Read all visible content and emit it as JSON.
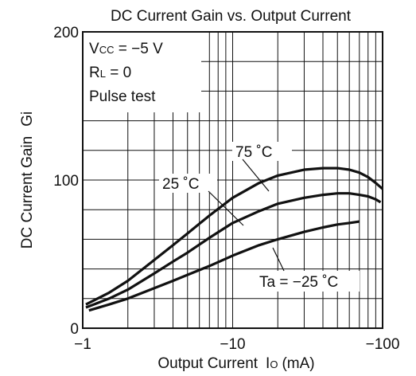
{
  "chart_data": {
    "type": "line",
    "title": "DC Current Gain vs. Output Current",
    "xlabel": "Output Current",
    "xlabel_symbol": "I",
    "xlabel_symbol_sub": "O",
    "xlabel_unit": "(mA)",
    "ylabel": "DC Current Gain",
    "ylabel_symbol": "Gi",
    "x_scale": "log",
    "xlim": [
      1,
      100
    ],
    "ylim": [
      0,
      200
    ],
    "x_ticks": [
      {
        "value": 1,
        "label": "−1"
      },
      {
        "value": 10,
        "label": "−10"
      },
      {
        "value": 100,
        "label": "−100"
      }
    ],
    "y_ticks": [
      {
        "value": 0,
        "label": "0"
      },
      {
        "value": 100,
        "label": "100"
      },
      {
        "value": 200,
        "label": "200"
      }
    ],
    "grid": true,
    "conditions": [
      "V",
      "R",
      "Pulse test"
    ],
    "conditions_full": [
      {
        "main": "V",
        "sub": "CC",
        "rest": " = −5 V"
      },
      {
        "main": "R",
        "sub": "L",
        "rest": " = 0"
      },
      {
        "main": "Pulse test",
        "sub": "",
        "rest": ""
      }
    ],
    "series": [
      {
        "name": "75 ˚C",
        "x": [
          1.05,
          1.5,
          2,
          3,
          4,
          5,
          7,
          10,
          15,
          20,
          30,
          40,
          50,
          60,
          70,
          80,
          90,
          100
        ],
        "y": [
          16,
          24,
          32,
          46,
          56,
          64,
          76,
          88,
          98,
          103,
          107,
          108,
          108,
          107,
          105,
          102,
          98,
          94
        ]
      },
      {
        "name": "25 ˚C",
        "x": [
          1.05,
          1.5,
          2,
          3,
          4,
          5,
          7,
          10,
          15,
          20,
          30,
          40,
          50,
          60,
          70,
          80,
          90,
          97
        ],
        "y": [
          14,
          20,
          26,
          37,
          45,
          51,
          61,
          71,
          79,
          84,
          88,
          90,
          91,
          91,
          90,
          89,
          87,
          85
        ]
      },
      {
        "name": "Ta = −25 ˚C",
        "x": [
          1.1,
          1.5,
          2,
          3,
          4,
          5,
          7,
          10,
          15,
          20,
          30,
          40,
          50,
          60,
          70
        ],
        "y": [
          12,
          16,
          20,
          27,
          32,
          36,
          42,
          49,
          56,
          60,
          65,
          68,
          70,
          71,
          72
        ]
      }
    ]
  }
}
